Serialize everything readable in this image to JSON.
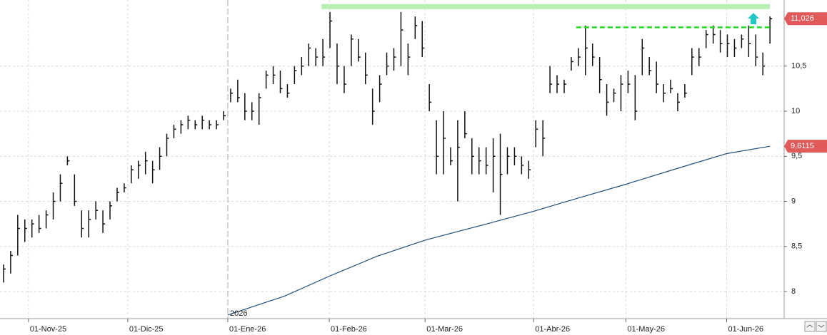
{
  "chart_data": {
    "type": "ohlc",
    "year_label": "2026",
    "xlim": [
      -0.5,
      110
    ],
    "xticks": [
      {
        "value": 3.5,
        "label": "01-Nov-25"
      },
      {
        "value": 17.5,
        "label": "01-Dic-25"
      },
      {
        "value": 31.6,
        "label": "01-Ene-26"
      },
      {
        "value": 45.9,
        "label": "01-Feb-26"
      },
      {
        "value": 59.4,
        "label": "01-Mar-26"
      },
      {
        "value": 74.7,
        "label": "01-Abr-26"
      },
      {
        "value": 87.7,
        "label": "01-May-26"
      },
      {
        "value": 101.9,
        "label": "01-Jun-26"
      }
    ],
    "year_separator": 31.6,
    "ylim": [
      7.7,
      11.233
    ],
    "yticks": [
      {
        "value": 8,
        "label": "8"
      },
      {
        "value": 8.5,
        "label": "8,5"
      },
      {
        "value": 9,
        "label": "9"
      },
      {
        "value": 9.5,
        "label": "9,5"
      },
      {
        "value": 10,
        "label": "10"
      },
      {
        "value": 10.5,
        "label": "10,5"
      }
    ],
    "grid": true,
    "color": "#111111",
    "high": [
      8.3,
      8.45,
      8.85,
      8.8,
      8.8,
      8.85,
      8.9,
      9.1,
      9.3,
      9.5,
      9.3,
      8.9,
      8.9,
      9.0,
      8.9,
      9.0,
      9.15,
      9.2,
      9.4,
      9.45,
      9.55,
      9.45,
      9.6,
      9.75,
      9.85,
      9.9,
      9.95,
      9.9,
      9.95,
      9.9,
      9.9,
      10.0,
      10.25,
      10.35,
      10.2,
      10.1,
      10.2,
      10.45,
      10.5,
      10.45,
      10.3,
      10.5,
      10.6,
      10.75,
      10.7,
      10.8,
      11.1,
      10.75,
      10.5,
      10.85,
      10.8,
      10.65,
      10.25,
      10.4,
      10.65,
      10.7,
      11.1,
      10.75,
      11.05,
      11.0,
      10.3,
      9.9,
      10.0,
      9.6,
      9.9,
      10.0,
      9.7,
      9.6,
      9.6,
      9.7,
      9.75,
      9.6,
      9.6,
      9.5,
      9.45,
      9.9,
      9.9,
      10.5,
      10.4,
      10.35,
      10.6,
      10.7,
      10.95,
      10.75,
      10.6,
      10.3,
      10.25,
      10.4,
      10.45,
      10.4,
      10.8,
      10.6,
      10.55,
      10.3,
      10.35,
      10.2,
      10.3,
      10.7,
      10.7,
      10.9,
      10.95,
      10.9,
      10.85,
      10.8,
      10.85,
      10.95,
      10.85,
      10.65,
      11.05
    ],
    "low": [
      8.1,
      8.2,
      8.4,
      8.55,
      8.6,
      8.65,
      8.7,
      8.8,
      9.0,
      9.4,
      8.95,
      8.6,
      8.6,
      8.8,
      8.65,
      8.8,
      9.0,
      9.1,
      9.2,
      9.25,
      9.3,
      9.2,
      9.35,
      9.5,
      9.7,
      9.75,
      9.8,
      9.8,
      9.8,
      9.8,
      9.8,
      9.9,
      10.1,
      10.1,
      9.9,
      9.9,
      9.85,
      10.25,
      10.3,
      10.2,
      10.15,
      10.3,
      10.4,
      10.5,
      10.5,
      10.5,
      10.7,
      10.3,
      10.2,
      10.5,
      10.55,
      10.3,
      9.85,
      10.1,
      10.4,
      10.45,
      10.5,
      10.4,
      10.8,
      10.6,
      10.0,
      9.3,
      9.3,
      9.4,
      9.0,
      9.7,
      9.3,
      9.3,
      9.3,
      9.1,
      8.85,
      9.3,
      9.4,
      9.3,
      9.25,
      9.6,
      9.5,
      10.2,
      10.2,
      10.2,
      10.45,
      10.5,
      10.4,
      10.5,
      10.2,
      9.95,
      10.1,
      10.0,
      10.2,
      9.9,
      10.4,
      10.4,
      10.2,
      10.1,
      10.2,
      10.0,
      10.15,
      10.4,
      10.5,
      10.7,
      10.75,
      10.65,
      10.6,
      10.6,
      10.7,
      10.6,
      10.5,
      10.4,
      10.75
    ],
    "close": [
      8.25,
      8.4,
      8.7,
      8.7,
      8.75,
      8.7,
      8.85,
      9.0,
      9.2,
      9.45,
      9.0,
      8.7,
      8.8,
      8.9,
      8.75,
      8.95,
      9.1,
      9.15,
      9.35,
      9.4,
      9.45,
      9.35,
      9.5,
      9.7,
      9.8,
      9.85,
      9.9,
      9.85,
      9.9,
      9.85,
      9.85,
      9.95,
      10.2,
      10.15,
      10.0,
      10.0,
      10.15,
      10.4,
      10.4,
      10.25,
      10.2,
      10.45,
      10.5,
      10.7,
      10.6,
      10.6,
      11.0,
      10.5,
      10.3,
      10.8,
      10.6,
      10.4,
      10.0,
      10.3,
      10.5,
      10.6,
      10.9,
      10.6,
      10.95,
      10.7,
      10.1,
      9.5,
      9.7,
      9.45,
      9.6,
      9.75,
      9.5,
      9.45,
      9.4,
      9.5,
      9.3,
      9.5,
      9.5,
      9.4,
      9.35,
      9.8,
      9.7,
      10.3,
      10.3,
      10.3,
      10.55,
      10.6,
      10.7,
      10.6,
      10.35,
      10.1,
      10.2,
      10.3,
      10.3,
      10.0,
      10.7,
      10.45,
      10.3,
      10.2,
      10.25,
      10.1,
      10.2,
      10.6,
      10.6,
      10.85,
      10.85,
      10.75,
      10.75,
      10.7,
      10.8,
      10.75,
      10.6,
      10.5,
      11.026
    ],
    "moving_average": {
      "color": "#1f4e79",
      "x": [
        31.6,
        39.6,
        45.9,
        52.6,
        59.4,
        67.6,
        74.7,
        80.7,
        87.7,
        94.7,
        101.9,
        108
      ],
      "values": [
        7.74,
        7.95,
        8.17,
        8.39,
        8.57,
        8.74,
        8.89,
        9.03,
        9.19,
        9.36,
        9.53,
        9.6115
      ]
    },
    "levels": [
      {
        "value": 11.16,
        "x": [
          44.8,
          108
        ],
        "color": "#b8f0b4",
        "style": "solid"
      },
      {
        "value": 10.93,
        "x": [
          80.7,
          108
        ],
        "color": "#22dd22",
        "style": "dashed"
      }
    ],
    "last_labels": [
      {
        "value": 11.026,
        "label": "11,026"
      },
      {
        "value": 9.6115,
        "label": "9,6115"
      }
    ]
  }
}
